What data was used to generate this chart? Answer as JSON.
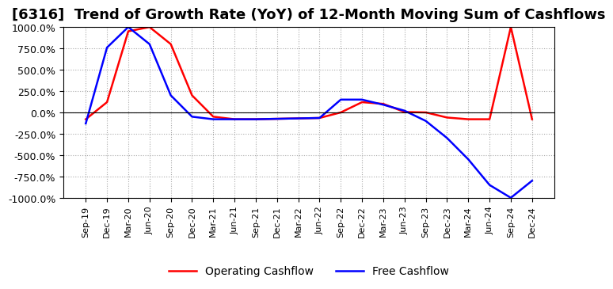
{
  "title": "[6316]  Trend of Growth Rate (YoY) of 12-Month Moving Sum of Cashflows",
  "title_fontsize": 13,
  "ylim": [
    -1000,
    1000
  ],
  "yticks": [
    -1000,
    -750,
    -500,
    -250,
    0,
    250,
    500,
    750,
    1000
  ],
  "ytick_labels": [
    "-1000.0%",
    "-750.0%",
    "-500.0%",
    "-250.0%",
    "0.0%",
    "250.0%",
    "500.0%",
    "750.0%",
    "1000.0%"
  ],
  "x_labels": [
    "Sep-19",
    "Dec-19",
    "Mar-20",
    "Jun-20",
    "Sep-20",
    "Dec-20",
    "Mar-21",
    "Jun-21",
    "Sep-21",
    "Dec-21",
    "Mar-22",
    "Jun-22",
    "Sep-22",
    "Dec-22",
    "Mar-23",
    "Jun-23",
    "Sep-23",
    "Dec-23",
    "Mar-24",
    "Jun-24",
    "Sep-24",
    "Dec-24"
  ],
  "background_color": "#ffffff",
  "plot_bg_color": "#ffffff",
  "grid_color": "#aaaaaa",
  "operating_color": "#ff0000",
  "free_color": "#0000ff",
  "legend_labels": [
    "Operating Cashflow",
    "Free Cashflow"
  ],
  "operating_cashflow": [
    -80,
    120,
    950,
    1000,
    800,
    200,
    -50,
    -80,
    -80,
    -75,
    -70,
    -65,
    0,
    120,
    100,
    5,
    0,
    -60,
    -80,
    -80,
    1000,
    -80
  ],
  "free_cashflow": [
    -130,
    760,
    1000,
    800,
    200,
    -50,
    -80,
    -80,
    -80,
    -75,
    -70,
    -65,
    150,
    150,
    90,
    20,
    -100,
    -300,
    -550,
    -850,
    -1000,
    -800
  ]
}
